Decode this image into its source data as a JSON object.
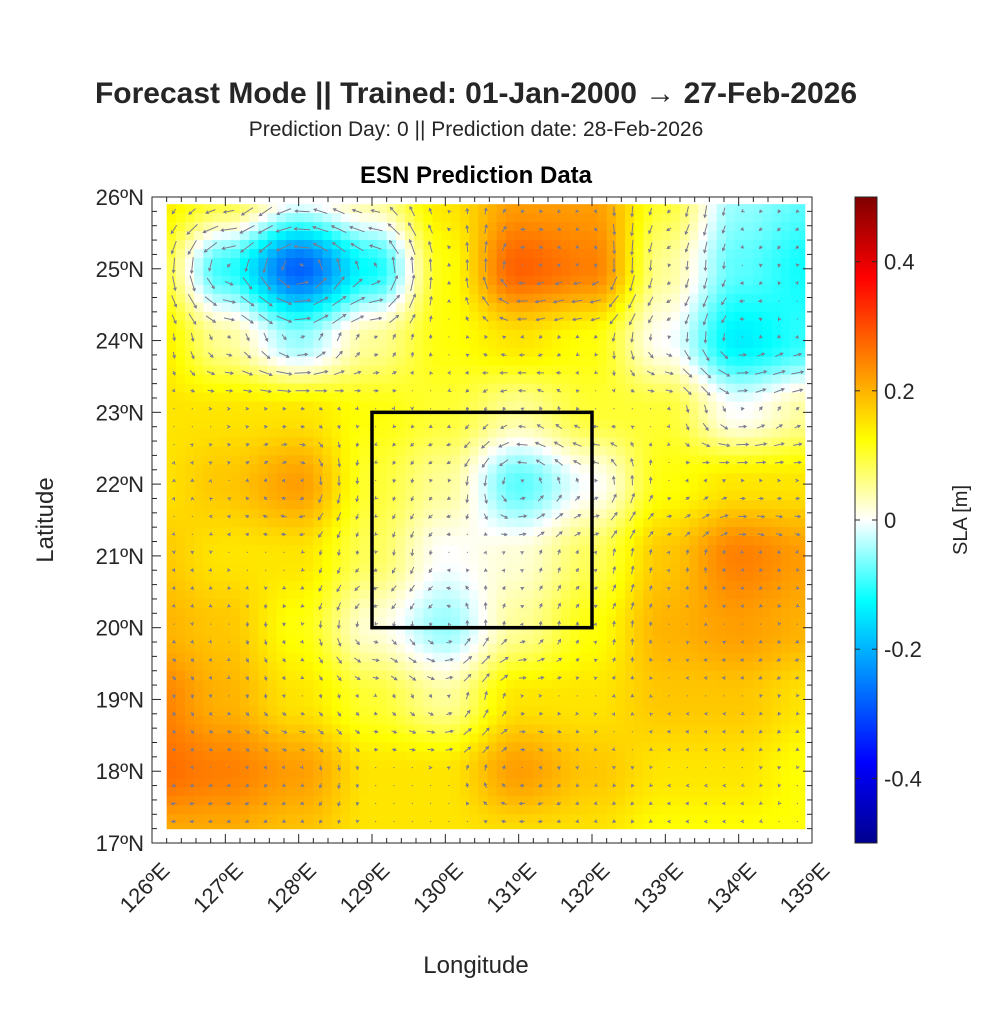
{
  "chart_data": {
    "type": "heatmap",
    "title": "Forecast Mode || Trained: 01-Jan-2000 → 27-Feb-2026",
    "subtitle": "Prediction Day: 0 || Prediction date: 28-Feb-2026",
    "axes_title": "ESN Prediction Data",
    "xlabel": "Longitude",
    "ylabel": "Latitude",
    "xlim": [
      126,
      135
    ],
    "ylim": [
      17,
      26
    ],
    "xticks": [
      126,
      127,
      128,
      129,
      130,
      131,
      132,
      133,
      134,
      135
    ],
    "yticks": [
      17,
      18,
      19,
      20,
      21,
      22,
      23,
      24,
      25,
      26
    ],
    "xtick_labels": [
      "126ºE",
      "127ºE",
      "128ºE",
      "129ºE",
      "130ºE",
      "131ºE",
      "132ºE",
      "133ºE",
      "134ºE",
      "135ºE"
    ],
    "ytick_labels": [
      "17ºN",
      "18ºN",
      "19ºN",
      "20ºN",
      "21ºN",
      "22ºN",
      "23ºN",
      "24ºN",
      "25ºN",
      "26ºN"
    ],
    "data_extent": {
      "lon": [
        126.2,
        134.9
      ],
      "lat": [
        17.2,
        25.9
      ]
    },
    "grid_lon": [
      126,
      127,
      128,
      129,
      130,
      131,
      132,
      133,
      134,
      135
    ],
    "grid_lat": [
      26,
      25,
      24,
      23,
      22,
      21,
      20,
      19,
      18,
      17
    ],
    "sla_grid": [
      [
        0.15,
        0.1,
        0.0,
        0.05,
        0.15,
        0.22,
        0.22,
        0.1,
        -0.05,
        -0.08
      ],
      [
        0.12,
        -0.1,
        -0.28,
        -0.12,
        0.12,
        0.28,
        0.25,
        0.05,
        -0.08,
        -0.12
      ],
      [
        0.15,
        0.05,
        -0.05,
        0.05,
        0.12,
        0.15,
        0.12,
        0.0,
        -0.14,
        -0.1
      ],
      [
        0.15,
        0.15,
        0.15,
        0.12,
        0.1,
        0.05,
        0.1,
        0.1,
        0.0,
        0.05
      ],
      [
        0.15,
        0.18,
        0.22,
        0.1,
        0.05,
        -0.08,
        0.0,
        0.12,
        0.15,
        0.15
      ],
      [
        0.18,
        0.15,
        0.15,
        0.08,
        0.0,
        0.02,
        0.08,
        0.18,
        0.25,
        0.22
      ],
      [
        0.2,
        0.18,
        0.12,
        0.02,
        -0.05,
        0.05,
        0.12,
        0.2,
        0.22,
        0.2
      ],
      [
        0.25,
        0.2,
        0.15,
        0.1,
        0.05,
        0.15,
        0.15,
        0.18,
        0.18,
        0.15
      ],
      [
        0.27,
        0.25,
        0.22,
        0.15,
        0.15,
        0.22,
        0.18,
        0.15,
        0.15,
        0.12
      ],
      [
        0.2,
        0.2,
        0.18,
        0.15,
        0.15,
        0.15,
        0.15,
        0.12,
        0.12,
        0.12
      ]
    ],
    "region_box": {
      "lon": [
        129,
        132
      ],
      "lat": [
        20,
        23
      ]
    },
    "colorbar": {
      "label": "SLA [m]",
      "clim": [
        -0.5,
        0.5
      ],
      "colormap": "jet",
      "ticks": [
        0.4,
        0.2,
        0,
        -0.2,
        -0.4
      ],
      "tick_labels": [
        "0.4",
        "0.2",
        "0",
        "-0.2",
        "-0.4"
      ]
    },
    "quiver_color": "#7a7a8c",
    "box_color": "#000000"
  }
}
